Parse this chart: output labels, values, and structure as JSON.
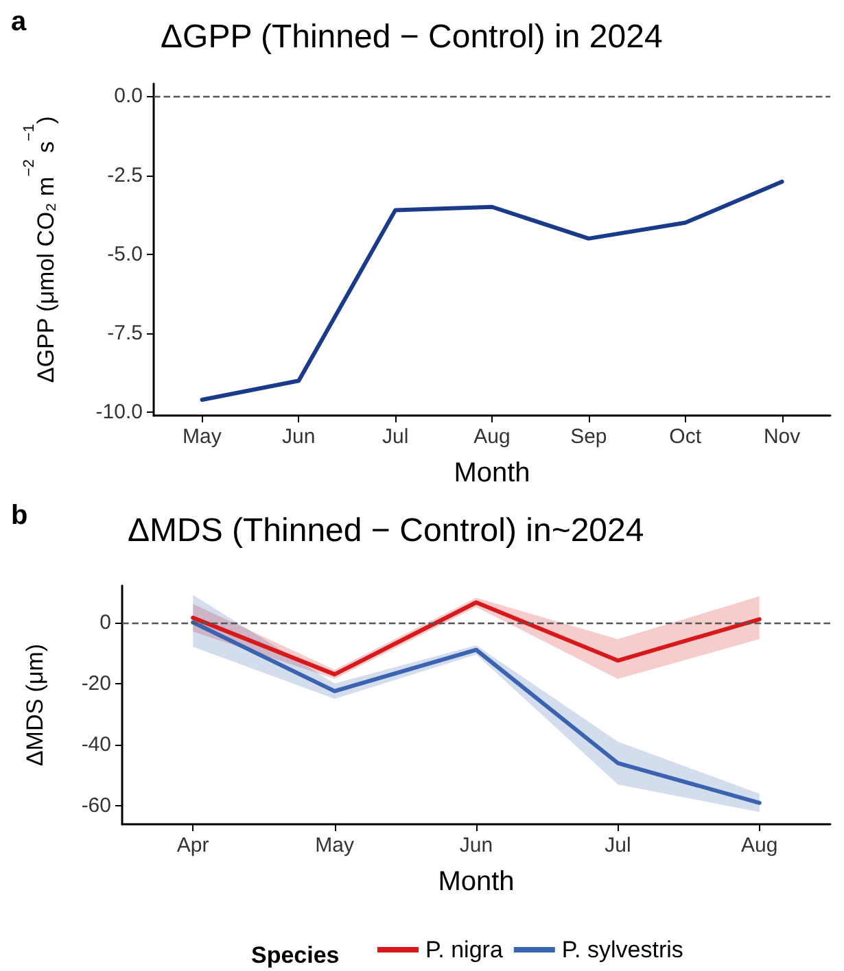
{
  "chart_data": [
    {
      "type": "line",
      "title": "ΔGPP (Thinned − Control) in 2024",
      "xlabel": "Month",
      "ylabel": "ΔGPP (μmol CO₂ m$^{−2}$ s$^{−1}$)",
      "annotations": [
        "a"
      ],
      "categories": [
        "May",
        "Jun",
        "Jul",
        "Aug",
        "Sep",
        "Oct",
        "Nov"
      ],
      "series": [
        {
          "color": "#1a3a8a",
          "values": [
            -9.6,
            -9.0,
            -3.6,
            -3.5,
            -4.5,
            -4.0,
            -2.7
          ]
        }
      ],
      "ylim": [
        -10.1,
        0.4
      ],
      "yticks": [
        {
          "value": -10,
          "label": "-10.0"
        },
        {
          "value": -7.5,
          "label": "-7.5"
        },
        {
          "value": -5,
          "label": "-5.0"
        },
        {
          "value": -2.5,
          "label": "-2.5"
        },
        {
          "value": 0,
          "label": "0.0"
        }
      ],
      "ref_lines": [
        {
          "axis": "y",
          "value": 0,
          "line_style": "dashed",
          "color": "#555555"
        }
      ],
      "grid": false,
      "legend": false,
      "marker": "none",
      "line_style": "solid"
    },
    {
      "type": "line",
      "title": "ΔMDS (Thinned − Control) in~2024",
      "xlabel": "Month",
      "ylabel": "ΔMDS (μm)",
      "annotations": [
        "b"
      ],
      "legend_title": "Species",
      "categories": [
        "Apr",
        "May",
        "Jun",
        "Jul",
        "Aug"
      ],
      "series": [
        {
          "name": "P. nigra",
          "color": "#d7191c",
          "values": [
            1.5,
            -17,
            6.5,
            -12.5,
            1
          ],
          "lower": [
            -3,
            -18.5,
            5,
            -18.5,
            -5.5
          ],
          "upper": [
            6,
            -15.5,
            8,
            -5.5,
            8.5
          ]
        },
        {
          "name": "P. sylvestris",
          "color": "#3a63b0",
          "values": [
            0,
            -22.5,
            -9,
            -46,
            -59
          ],
          "lower": [
            -8,
            -25,
            -10.5,
            -53,
            -62
          ],
          "upper": [
            9,
            -20,
            -7.5,
            -39,
            -56
          ]
        }
      ],
      "ylim": [
        -66,
        12
      ],
      "yticks": [
        -60,
        -40,
        -20,
        0
      ],
      "ref_lines": [
        {
          "axis": "y",
          "value": 0,
          "line_style": "dashed",
          "color": "#555555"
        }
      ],
      "grid": false,
      "legend": "bottom",
      "marker": "none",
      "line_style": "solid"
    }
  ]
}
